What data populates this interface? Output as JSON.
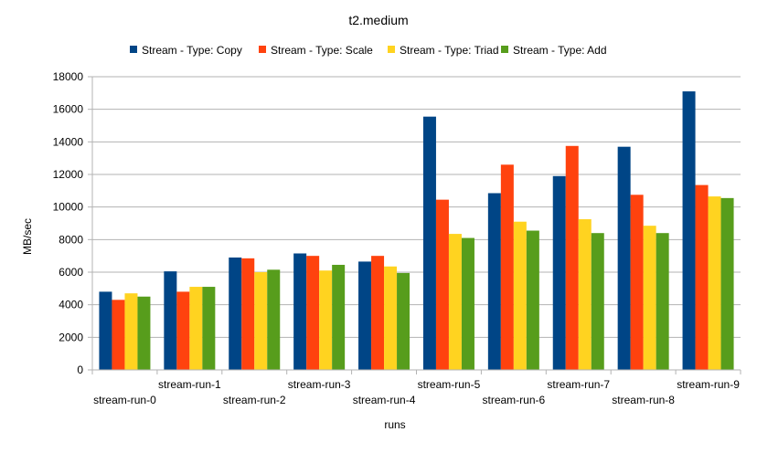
{
  "chart_data": {
    "type": "bar",
    "title": "t2.medium",
    "xlabel": "runs",
    "ylabel": "MB/sec",
    "ylim": [
      0,
      18000
    ],
    "yticks": [
      0,
      2000,
      4000,
      6000,
      8000,
      10000,
      12000,
      14000,
      16000,
      18000
    ],
    "grid": true,
    "legend_position": "top",
    "categories": [
      "stream-run-0",
      "stream-run-1",
      "stream-run-2",
      "stream-run-3",
      "stream-run-4",
      "stream-run-5",
      "stream-run-6",
      "stream-run-7",
      "stream-run-8",
      "stream-run-9"
    ],
    "series": [
      {
        "name": "Stream - Type: Copy",
        "color": "#004586",
        "values": [
          4800,
          6050,
          6900,
          7150,
          6650,
          15550,
          10850,
          11900,
          13700,
          17100
        ]
      },
      {
        "name": "Stream - Type: Scale",
        "color": "#ff420e",
        "values": [
          4300,
          4800,
          6850,
          7000,
          7000,
          10450,
          12600,
          13750,
          10750,
          11350
        ]
      },
      {
        "name": "Stream - Type: Triad",
        "color": "#ffd320",
        "values": [
          4700,
          5100,
          6000,
          6100,
          6350,
          8350,
          9100,
          9250,
          8850,
          10650
        ]
      },
      {
        "name": "Stream - Type: Add",
        "color": "#579d1c",
        "values": [
          4500,
          5100,
          6150,
          6450,
          5950,
          8100,
          8550,
          8400,
          8400,
          10550
        ]
      }
    ]
  }
}
